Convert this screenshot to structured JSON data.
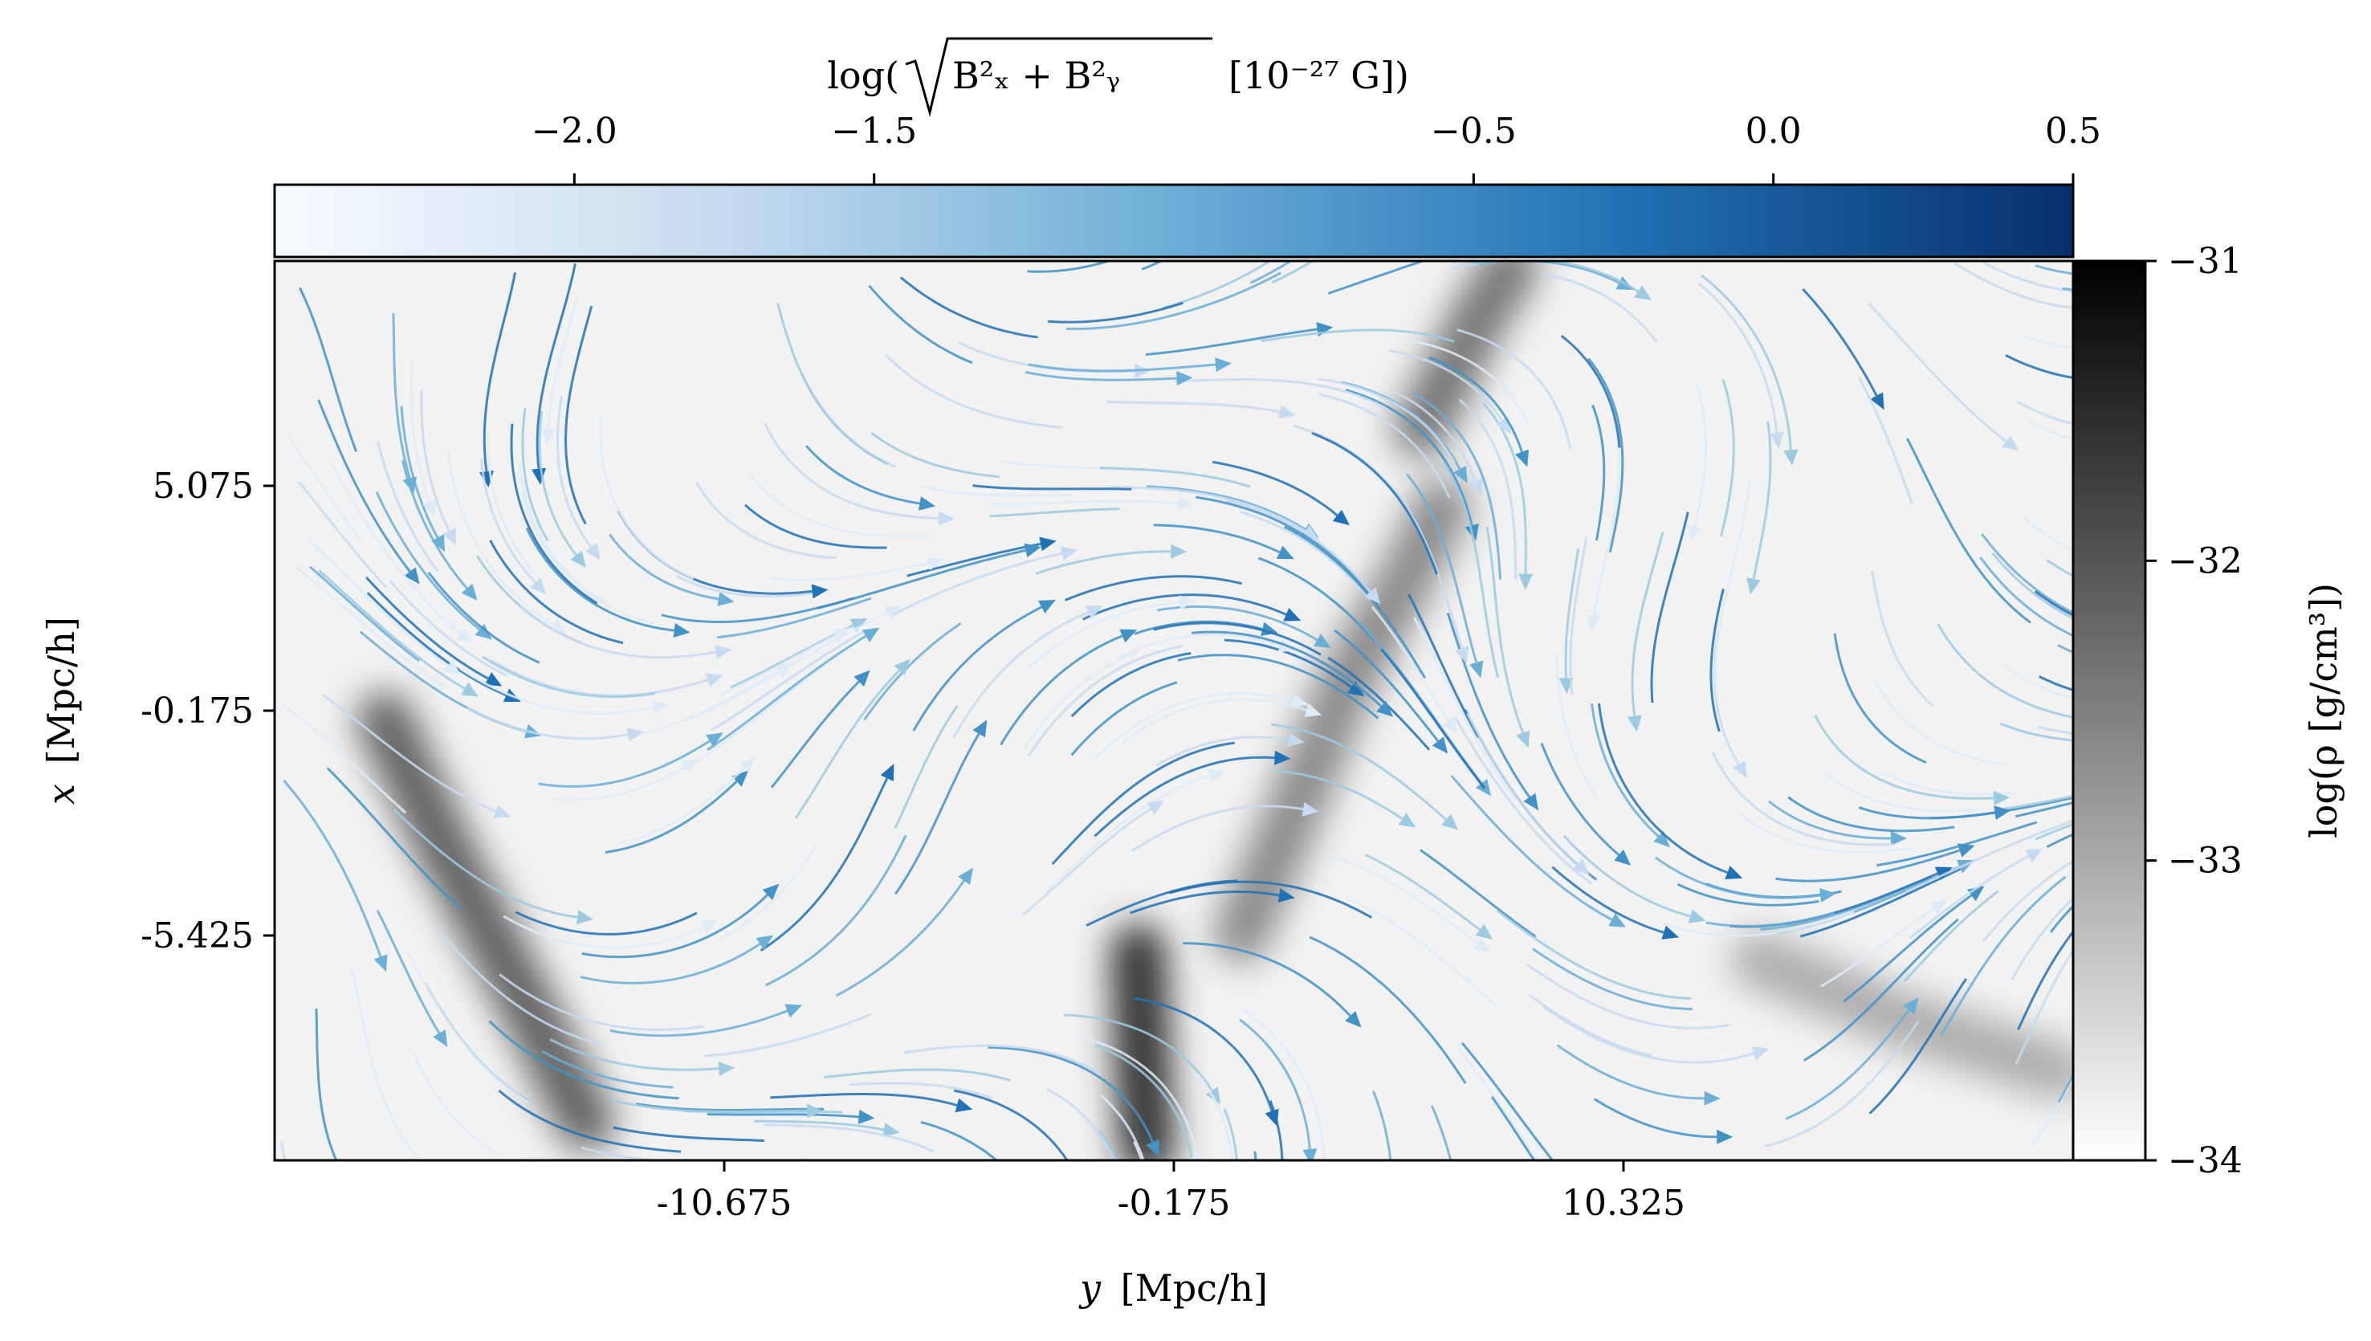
{
  "chart_data": {
    "type": "heatmap",
    "x_axis": {
      "label_var": "y",
      "label_unit": "[Mpc/h]",
      "ticks": [
        "-10.675",
        "-0.175",
        "10.325"
      ],
      "tick_values": [
        -10.675,
        -0.175,
        10.325
      ],
      "range": [
        -21.175,
        20.825
      ]
    },
    "y_axis": {
      "label_var": "x",
      "label_unit": "[Mpc/h]",
      "ticks": [
        "5.075",
        "-0.175",
        "-5.425"
      ],
      "tick_values": [
        5.075,
        -0.175,
        -5.425
      ],
      "range": [
        -10.675,
        10.325
      ]
    },
    "density_colorbar": {
      "label": "log(ρ [g/cm³])",
      "ticks": [
        "−31",
        "−32",
        "−33",
        "−34"
      ],
      "tick_values": [
        -31,
        -32,
        -33,
        -34
      ],
      "range": [
        -34,
        -31
      ],
      "colormap": [
        "#ffffff",
        "#000000"
      ]
    },
    "field_colorbar": {
      "label_prefix": "log(",
      "label_sqrt": "B²ₓ + B²ᵧ",
      "label_suffix": "[10⁻²⁷ G])",
      "ticks": [
        "−2.0",
        "−1.5",
        "−0.5",
        "0.0",
        "0.5"
      ],
      "tick_values": [
        -2.0,
        -1.5,
        -0.5,
        0.0,
        0.5
      ],
      "range": [
        -2.5,
        0.5
      ],
      "colormap": [
        "#f7fbff",
        "#c6dbef",
        "#6baed6",
        "#2171b5",
        "#08306b"
      ]
    },
    "filaments": [
      {
        "y": [
          -18.6,
          -17.2,
          -15.3,
          -13.9
        ],
        "x": [
          -0.4,
          -3.4,
          -7.0,
          -9.8
        ],
        "intensity": [
          -31.5,
          -32.0,
          -32.5,
          -32.6
        ]
      },
      {
        "y": [
          -1.0,
          -0.9,
          -0.8
        ],
        "x": [
          -5.8,
          -8.5,
          -10.4
        ],
        "intensity": [
          -32.2,
          -31.6,
          -31.1
        ]
      },
      {
        "y": [
          1.4,
          2.6,
          3.9,
          5.2,
          6.1
        ],
        "x": [
          -5.4,
          -2.6,
          0.6,
          2.8,
          4.6
        ],
        "intensity": [
          -32.5,
          -32.6,
          -32.7,
          -32.8,
          -32.6
        ]
      },
      {
        "y": [
          5.6,
          7.0,
          7.7
        ],
        "x": [
          6.4,
          9.1,
          10.2
        ],
        "intensity": [
          -32.6,
          -32.4,
          -32.2
        ]
      },
      {
        "y": [
          13.5,
          16.8,
          20.5
        ],
        "x": [
          -6.0,
          -7.4,
          -8.6
        ],
        "intensity": [
          -33.2,
          -33.0,
          -32.9
        ]
      }
    ]
  }
}
